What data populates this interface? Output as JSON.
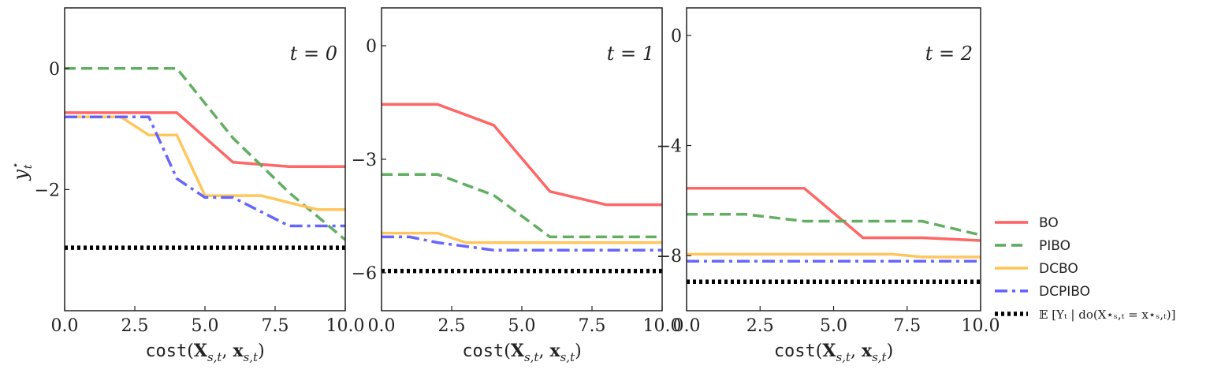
{
  "chart_data": [
    {
      "type": "line",
      "annotation": "t = 0",
      "xlabel": "cost(X_{s,t}, x_{s,t})",
      "ylabel": "y*_t",
      "xlim": [
        0,
        10
      ],
      "ylim": [
        -4.0,
        1.0
      ],
      "xticks": [
        "0.0",
        "2.5",
        "5.0",
        "7.5",
        "10.0"
      ],
      "xtick_values": [
        0,
        2.5,
        5,
        7.5,
        10
      ],
      "yticks": [
        "0",
        "−2"
      ],
      "ytick_values": [
        0,
        -2
      ],
      "grid": false,
      "series": [
        {
          "name": "BO",
          "x": [
            0,
            4,
            6,
            8,
            10
          ],
          "y": [
            -0.73,
            -0.73,
            -1.55,
            -1.62,
            -1.62
          ]
        },
        {
          "name": "PIBO",
          "x": [
            0,
            4,
            6,
            8,
            10
          ],
          "y": [
            0.0,
            0.0,
            -1.15,
            -2.05,
            -2.83
          ]
        },
        {
          "name": "DCBO",
          "x": [
            0,
            2,
            3,
            4,
            5,
            7,
            9,
            10
          ],
          "y": [
            -0.8,
            -0.8,
            -1.1,
            -1.1,
            -2.1,
            -2.1,
            -2.33,
            -2.33
          ]
        },
        {
          "name": "DCPIBO",
          "x": [
            0,
            3,
            4,
            5,
            6,
            8,
            10
          ],
          "y": [
            -0.8,
            -0.8,
            -1.82,
            -2.13,
            -2.13,
            -2.6,
            -2.6
          ]
        },
        {
          "name": "E[Y_t | do(X*_{s,t} = x*_{s,t})]",
          "x": [
            0,
            10
          ],
          "y": [
            -2.96,
            -2.96
          ]
        }
      ]
    },
    {
      "type": "line",
      "annotation": "t = 1",
      "xlabel": "cost(X_{s,t}, x_{s,t})",
      "ylabel": "",
      "xlim": [
        0,
        10
      ],
      "ylim": [
        -7.0,
        1.0
      ],
      "xticks": [
        "0.0",
        "2.5",
        "5.0",
        "7.5",
        "10.0"
      ],
      "xtick_values": [
        0,
        2.5,
        5,
        7.5,
        10
      ],
      "yticks": [
        "0",
        "−3",
        "−6"
      ],
      "ytick_values": [
        0,
        -3,
        -6
      ],
      "grid": false,
      "series": [
        {
          "name": "BO",
          "x": [
            0,
            2,
            4,
            6,
            8,
            10
          ],
          "y": [
            -1.55,
            -1.55,
            -2.1,
            -3.85,
            -4.2,
            -4.2
          ]
        },
        {
          "name": "PIBO",
          "x": [
            0,
            2,
            4,
            6,
            10
          ],
          "y": [
            -3.4,
            -3.4,
            -3.95,
            -5.05,
            -5.05
          ]
        },
        {
          "name": "DCBO",
          "x": [
            0,
            2,
            3,
            4,
            10
          ],
          "y": [
            -4.95,
            -4.95,
            -5.2,
            -5.2,
            -5.2
          ]
        },
        {
          "name": "DCPIBO",
          "x": [
            0,
            1,
            2,
            4,
            10
          ],
          "y": [
            -5.05,
            -5.05,
            -5.2,
            -5.4,
            -5.4
          ]
        },
        {
          "name": "E[Y_t | do(X*_{s,t} = x*_{s,t})]",
          "x": [
            0,
            10
          ],
          "y": [
            -5.95,
            -5.95
          ]
        }
      ]
    },
    {
      "type": "line",
      "annotation": "t = 2",
      "xlabel": "cost(X_{s,t}, x_{s,t})",
      "ylabel": "",
      "xlim": [
        0,
        10
      ],
      "ylim": [
        -10.0,
        1.0
      ],
      "xticks": [
        "0.0",
        "2.5",
        "5.0",
        "7.5",
        "10.0"
      ],
      "xtick_values": [
        0,
        2.5,
        5,
        7.5,
        10
      ],
      "yticks": [
        "0",
        "−4",
        "−8"
      ],
      "ytick_values": [
        0,
        -4,
        -8
      ],
      "grid": false,
      "series": [
        {
          "name": "BO",
          "x": [
            0,
            2,
            4,
            6,
            8,
            10
          ],
          "y": [
            -5.55,
            -5.55,
            -5.55,
            -7.35,
            -7.35,
            -7.45
          ]
        },
        {
          "name": "PIBO",
          "x": [
            0,
            2,
            4,
            7,
            8,
            10
          ],
          "y": [
            -6.5,
            -6.5,
            -6.75,
            -6.75,
            -6.75,
            -7.25
          ]
        },
        {
          "name": "DCBO",
          "x": [
            0,
            7,
            8,
            10
          ],
          "y": [
            -7.95,
            -7.95,
            -8.05,
            -8.05
          ]
        },
        {
          "name": "DCPIBO",
          "x": [
            0,
            10
          ],
          "y": [
            -8.2,
            -8.2
          ]
        },
        {
          "name": "E[Y_t | do(X*_{s,t} = x*_{s,t})]",
          "x": [
            0,
            10
          ],
          "y": [
            -8.95,
            -8.95
          ]
        }
      ]
    }
  ],
  "legend": {
    "placement": "lower-right outside",
    "items": [
      {
        "label": "BO",
        "color": "#ff5e5e",
        "dash": "solid"
      },
      {
        "label": "PIBO",
        "color": "#5aaa5a",
        "dash": "dashed"
      },
      {
        "label": "DCBO",
        "color": "#ffc354",
        "dash": "solid"
      },
      {
        "label": "DCPIBO",
        "color": "#5e5eff",
        "dash": "dashdot"
      },
      {
        "label": "𝔼 [Yₜ | do(X⋆ₛ,ₜ = x⋆ₛ,ₜ)]",
        "color": "#000000",
        "dash": "dotted"
      }
    ]
  }
}
